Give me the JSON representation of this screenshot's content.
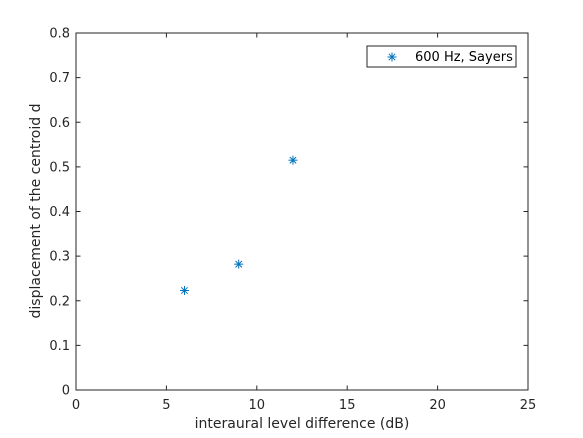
{
  "chart_data": {
    "type": "scatter",
    "xlabel": "interaural level difference (dB)",
    "ylabel": "displacement of the centroid d",
    "xlim": [
      0,
      25
    ],
    "ylim": [
      0,
      0.8
    ],
    "xticks": [
      0,
      5,
      10,
      15,
      20,
      25
    ],
    "yticks": [
      0,
      0.1,
      0.2,
      0.3,
      0.4,
      0.5,
      0.6,
      0.7,
      0.8
    ],
    "xtick_labels": [
      "0",
      "5",
      "10",
      "15",
      "20",
      "25"
    ],
    "ytick_labels": [
      "0",
      "0.1",
      "0.2",
      "0.3",
      "0.4",
      "0.5",
      "0.6",
      "0.7",
      "0.8"
    ],
    "grid": false,
    "legend_position": "top-right",
    "series": [
      {
        "name": "600 Hz, Sayers",
        "marker": "asterisk",
        "color": "#0072bd",
        "x": [
          6,
          9,
          12
        ],
        "y": [
          0.223,
          0.282,
          0.515
        ]
      }
    ]
  }
}
